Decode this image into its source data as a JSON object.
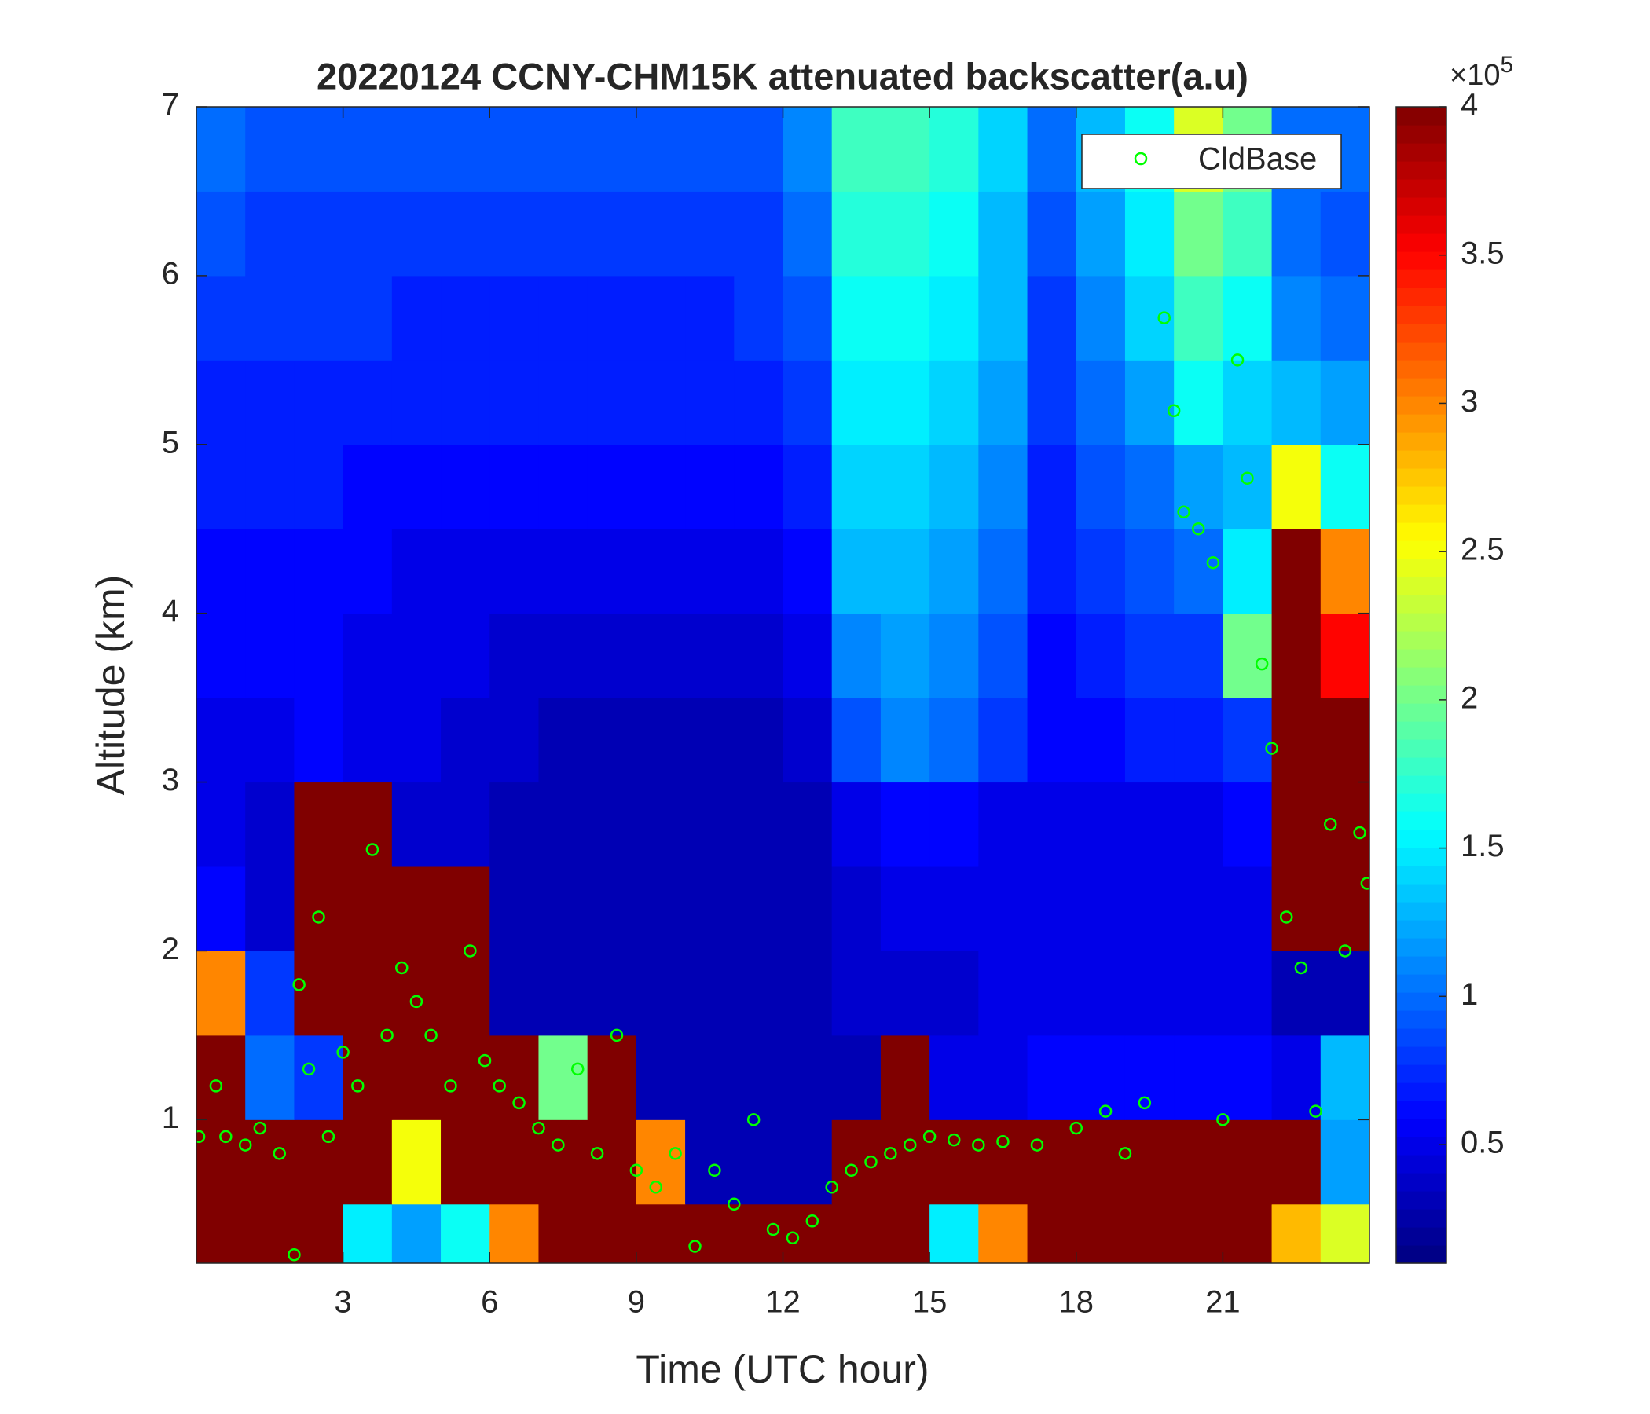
{
  "chart_data": {
    "type": "heatmap",
    "title": "20220124 CCNY-CHM15K attenuated backscatter(a.u)",
    "xlabel": "Time (UTC hour)",
    "ylabel": "Altitude (km)",
    "xlim": [
      0,
      24
    ],
    "ylim": [
      0.15,
      7
    ],
    "xticks": [
      3,
      6,
      9,
      12,
      15,
      18,
      21
    ],
    "yticks": [
      1,
      2,
      3,
      4,
      5,
      6,
      7
    ],
    "colormap": "jet",
    "clim": [
      0.1,
      4
    ],
    "colorbar_ticks": [
      0.5,
      1,
      1.5,
      2,
      2.5,
      3,
      3.5,
      4
    ],
    "colorbar_multiplier": {
      "base": "×10",
      "exponent": "5"
    },
    "x_edges": [
      0,
      1,
      2,
      3,
      4,
      5,
      6,
      7,
      8,
      9,
      10,
      11,
      12,
      13,
      14,
      15,
      16,
      17,
      18,
      19,
      20,
      21,
      22,
      23,
      24
    ],
    "y_edges": [
      0,
      0.5,
      1,
      1.5,
      2,
      2.5,
      3,
      3.5,
      4,
      4.5,
      5,
      5.5,
      6,
      6.5,
      7
    ],
    "z": [
      [
        4,
        4,
        4,
        1.5,
        1.2,
        1.6,
        3,
        4,
        4,
        4,
        4,
        4,
        4,
        4,
        4,
        1.5,
        3,
        4,
        4,
        4,
        4,
        4,
        2.8,
        2.4
      ],
      [
        4,
        4,
        4,
        4,
        2.5,
        4,
        4,
        4,
        4,
        3,
        0.3,
        0.3,
        0.3,
        4,
        4,
        4,
        4,
        4,
        4,
        4,
        4,
        4,
        4,
        1.2
      ],
      [
        4,
        1,
        0.8,
        4,
        4,
        4,
        4,
        2,
        4,
        0.3,
        0.3,
        0.3,
        0.3,
        0.3,
        4,
        0.5,
        0.5,
        0.6,
        0.6,
        0.6,
        0.6,
        0.6,
        0.5,
        1.3
      ],
      [
        3,
        0.8,
        4,
        4,
        4,
        4,
        0.3,
        0.3,
        0.3,
        0.3,
        0.3,
        0.3,
        0.3,
        0.4,
        0.4,
        0.4,
        0.5,
        0.5,
        0.5,
        0.5,
        0.5,
        0.5,
        0.3,
        0.3
      ],
      [
        0.6,
        0.4,
        4,
        4,
        4,
        4,
        0.3,
        0.3,
        0.3,
        0.3,
        0.3,
        0.3,
        0.3,
        0.4,
        0.5,
        0.5,
        0.5,
        0.5,
        0.5,
        0.5,
        0.5,
        0.5,
        4,
        4
      ],
      [
        0.5,
        0.4,
        4,
        4,
        0.4,
        0.4,
        0.3,
        0.3,
        0.3,
        0.3,
        0.3,
        0.3,
        0.3,
        0.5,
        0.6,
        0.6,
        0.5,
        0.5,
        0.5,
        0.5,
        0.5,
        0.6,
        4,
        4
      ],
      [
        0.5,
        0.5,
        0.6,
        0.5,
        0.5,
        0.4,
        0.4,
        0.3,
        0.3,
        0.3,
        0.3,
        0.3,
        0.4,
        0.9,
        1.1,
        1.0,
        0.8,
        0.6,
        0.6,
        0.7,
        0.7,
        0.8,
        4,
        4
      ],
      [
        0.6,
        0.6,
        0.6,
        0.5,
        0.5,
        0.5,
        0.4,
        0.4,
        0.4,
        0.4,
        0.4,
        0.4,
        0.5,
        1.1,
        1.2,
        1.1,
        0.9,
        0.6,
        0.7,
        0.8,
        0.8,
        2,
        4,
        3.5
      ],
      [
        0.6,
        0.6,
        0.6,
        0.6,
        0.5,
        0.5,
        0.5,
        0.5,
        0.5,
        0.5,
        0.5,
        0.5,
        0.6,
        1.3,
        1.3,
        1.2,
        1.0,
        0.7,
        0.8,
        0.9,
        1.0,
        1.5,
        4,
        3
      ],
      [
        0.7,
        0.7,
        0.7,
        0.6,
        0.6,
        0.6,
        0.6,
        0.6,
        0.6,
        0.6,
        0.6,
        0.6,
        0.7,
        1.4,
        1.4,
        1.3,
        1.1,
        0.7,
        0.9,
        1.0,
        1.2,
        1.3,
        2.5,
        1.6
      ],
      [
        0.7,
        0.7,
        0.7,
        0.7,
        0.7,
        0.7,
        0.7,
        0.7,
        0.7,
        0.7,
        0.7,
        0.7,
        0.8,
        1.5,
        1.5,
        1.4,
        1.2,
        0.8,
        1.0,
        1.2,
        1.6,
        1.4,
        1.3,
        1.2
      ],
      [
        0.8,
        0.8,
        0.8,
        0.8,
        0.7,
        0.7,
        0.7,
        0.7,
        0.7,
        0.7,
        0.7,
        0.8,
        0.9,
        1.6,
        1.6,
        1.5,
        1.3,
        0.8,
        1.1,
        1.4,
        1.8,
        1.6,
        1.1,
        1.0
      ],
      [
        0.9,
        0.8,
        0.8,
        0.8,
        0.8,
        0.8,
        0.8,
        0.8,
        0.8,
        0.8,
        0.8,
        0.8,
        1.0,
        1.7,
        1.7,
        1.6,
        1.3,
        0.9,
        1.2,
        1.5,
        2.0,
        1.8,
        1.0,
        0.9
      ],
      [
        1.0,
        0.9,
        0.9,
        0.9,
        0.9,
        0.9,
        0.9,
        0.9,
        0.9,
        0.9,
        0.9,
        0.9,
        1.1,
        1.8,
        1.8,
        1.7,
        1.4,
        1.0,
        1.3,
        1.6,
        2.4,
        2.0,
        1.0,
        1.0
      ]
    ],
    "series": [
      {
        "type": "scatter",
        "name": "CldBase",
        "color": "#00ff00",
        "marker": "circle",
        "x": [
          0.05,
          0.4,
          0.6,
          1,
          1.3,
          1.7,
          2,
          2.1,
          2.3,
          2.5,
          2.7,
          3,
          3.3,
          3.6,
          3.9,
          4.2,
          4.5,
          4.8,
          5.2,
          5.6,
          5.9,
          6.2,
          6.6,
          7,
          7.4,
          7.8,
          8.2,
          8.6,
          9,
          9.4,
          9.8,
          10.2,
          10.6,
          11,
          11.4,
          11.8,
          12.2,
          12.6,
          13,
          13.4,
          13.8,
          14.2,
          14.6,
          15,
          15.5,
          16,
          16.5,
          17.2,
          18,
          18.6,
          19,
          19.4,
          19.8,
          20,
          20.2,
          20.5,
          20.8,
          21,
          21.3,
          21.5,
          21.8,
          22,
          22.3,
          22.6,
          22.9,
          23.2,
          23.5,
          23.8,
          23.95
        ],
        "values": [
          0.9,
          1.2,
          0.9,
          0.85,
          0.95,
          0.8,
          0.2,
          1.8,
          1.3,
          2.2,
          0.9,
          1.4,
          1.2,
          2.6,
          1.5,
          1.9,
          1.7,
          1.5,
          1.2,
          2.0,
          1.35,
          1.2,
          1.1,
          0.95,
          0.85,
          1.3,
          0.8,
          1.5,
          0.7,
          0.6,
          0.8,
          0.25,
          0.7,
          0.5,
          1.0,
          0.35,
          0.3,
          0.4,
          0.6,
          0.7,
          0.75,
          0.8,
          0.85,
          0.9,
          0.88,
          0.85,
          0.87,
          0.85,
          0.95,
          1.05,
          0.8,
          1.1,
          5.75,
          5.2,
          4.6,
          4.5,
          4.3,
          1.0,
          5.5,
          4.8,
          3.7,
          3.2,
          2.2,
          1.9,
          1.05,
          2.75,
          2.0,
          2.7,
          2.4
        ]
      }
    ],
    "legend": "upper right"
  }
}
